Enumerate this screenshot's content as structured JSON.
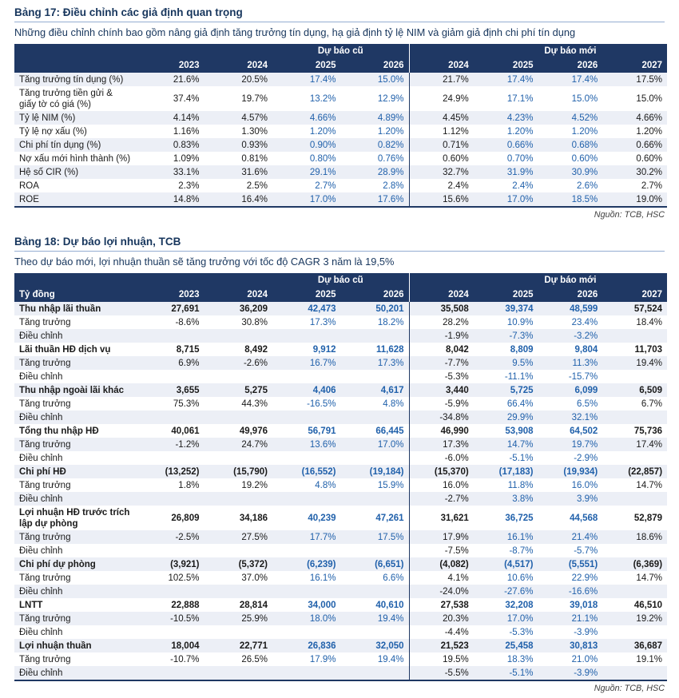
{
  "colors": {
    "header_navy": "#1F3864",
    "forecast_blue": "#2161AB",
    "stripe": "#ECEFF6",
    "title_navy": "#17365d"
  },
  "table17": {
    "title": "Bảng 17: Điều chỉnh các giả định quan trọng",
    "subtitle": "Những điều chỉnh chính bao gồm nâng giả định tăng trưởng tín dụng, hạ giả định tỷ lệ NIM và giảm giả định chi phí tín dụng",
    "group_old": "Dự báo cũ",
    "group_new": "Dự báo mới",
    "unit_label": "",
    "years_old": [
      "2023",
      "2024",
      "2025",
      "2026"
    ],
    "years_new": [
      "2024",
      "2025",
      "2026",
      "2027"
    ],
    "source": "Nguồn: TCB, HSC",
    "rows": [
      {
        "label": "Tăng trưởng tín dụng (%)",
        "old": [
          "21.6%",
          "20.5%",
          "17.4%",
          "15.0%"
        ],
        "new": [
          "21.7%",
          "17.4%",
          "17.4%",
          "17.5%"
        ]
      },
      {
        "label": "Tăng trưởng tiền gửi & giấy tờ có giá (%)",
        "old": [
          "37.4%",
          "19.7%",
          "13.2%",
          "12.9%"
        ],
        "new": [
          "24.9%",
          "17.1%",
          "15.0%",
          "15.0%"
        ]
      },
      {
        "label": "Tỷ lệ NIM (%)",
        "old": [
          "4.14%",
          "4.57%",
          "4.66%",
          "4.89%"
        ],
        "new": [
          "4.45%",
          "4.23%",
          "4.52%",
          "4.66%"
        ]
      },
      {
        "label": "Tỷ lệ nợ xấu (%)",
        "old": [
          "1.16%",
          "1.30%",
          "1.20%",
          "1.20%"
        ],
        "new": [
          "1.12%",
          "1.20%",
          "1.20%",
          "1.20%"
        ]
      },
      {
        "label": "Chi phí tín dụng (%)",
        "old": [
          "0.83%",
          "0.93%",
          "0.90%",
          "0.82%"
        ],
        "new": [
          "0.71%",
          "0.66%",
          "0.68%",
          "0.66%"
        ]
      },
      {
        "label": "Nợ xấu mới hình thành (%)",
        "old": [
          "1.09%",
          "0.81%",
          "0.80%",
          "0.76%"
        ],
        "new": [
          "0.60%",
          "0.70%",
          "0.60%",
          "0.60%"
        ]
      },
      {
        "label": "Hệ số CIR (%)",
        "old": [
          "33.1%",
          "31.6%",
          "29.1%",
          "28.9%"
        ],
        "new": [
          "32.7%",
          "31.9%",
          "30.9%",
          "30.2%"
        ]
      },
      {
        "label": "ROA",
        "old": [
          "2.3%",
          "2.5%",
          "2.7%",
          "2.8%"
        ],
        "new": [
          "2.4%",
          "2.4%",
          "2.6%",
          "2.7%"
        ]
      },
      {
        "label": "ROE",
        "old": [
          "14.8%",
          "16.4%",
          "17.0%",
          "17.6%"
        ],
        "new": [
          "15.6%",
          "17.0%",
          "18.5%",
          "19.0%"
        ]
      }
    ]
  },
  "table18": {
    "title": "Bảng 18: Dự báo lợi nhuận, TCB",
    "subtitle": "Theo dự báo mới, lợi nhuận thuần sẽ tăng trưởng với tốc độ CAGR 3 năm là 19,5%",
    "group_old": "Dự báo cũ",
    "group_new": "Dự báo mới",
    "unit_label": "Tỷ đồng",
    "years_old": [
      "2023",
      "2024",
      "2025",
      "2026"
    ],
    "years_new": [
      "2024",
      "2025",
      "2026",
      "2027"
    ],
    "source": "Nguồn: TCB, HSC",
    "rows": [
      {
        "label": "Thu nhập lãi thuần",
        "bold": true,
        "old": [
          "27,691",
          "36,209",
          "42,473",
          "50,201"
        ],
        "new": [
          "35,508",
          "39,374",
          "48,599",
          "57,524"
        ]
      },
      {
        "label": "Tăng trưởng",
        "old": [
          "-8.6%",
          "30.8%",
          "17.3%",
          "18.2%"
        ],
        "new": [
          "28.2%",
          "10.9%",
          "23.4%",
          "18.4%"
        ]
      },
      {
        "label": "Điều chỉnh",
        "old": [
          "",
          "",
          "",
          ""
        ],
        "new": [
          "-1.9%",
          "-7.3%",
          "-3.2%",
          ""
        ]
      },
      {
        "label": "Lãi thuần HĐ dịch vụ",
        "bold": true,
        "old": [
          "8,715",
          "8,492",
          "9,912",
          "11,628"
        ],
        "new": [
          "8,042",
          "8,809",
          "9,804",
          "11,703"
        ]
      },
      {
        "label": "Tăng trưởng",
        "old": [
          "6.9%",
          "-2.6%",
          "16.7%",
          "17.3%"
        ],
        "new": [
          "-7.7%",
          "9.5%",
          "11.3%",
          "19.4%"
        ]
      },
      {
        "label": "Điều chỉnh",
        "old": [
          "",
          "",
          "",
          ""
        ],
        "new": [
          "-5.3%",
          "-11.1%",
          "-15.7%",
          ""
        ]
      },
      {
        "label": "Thu nhập ngoài lãi khác",
        "bold": true,
        "old": [
          "3,655",
          "5,275",
          "4,406",
          "4,617"
        ],
        "new": [
          "3,440",
          "5,725",
          "6,099",
          "6,509"
        ]
      },
      {
        "label": "Tăng trưởng",
        "old": [
          "75.3%",
          "44.3%",
          "-16.5%",
          "4.8%"
        ],
        "new": [
          "-5.9%",
          "66.4%",
          "6.5%",
          "6.7%"
        ]
      },
      {
        "label": "Điều chỉnh",
        "old": [
          "",
          "",
          "",
          ""
        ],
        "new": [
          "-34.8%",
          "29.9%",
          "32.1%",
          ""
        ]
      },
      {
        "label": "Tổng thu nhập HĐ",
        "bold": true,
        "old": [
          "40,061",
          "49,976",
          "56,791",
          "66,445"
        ],
        "new": [
          "46,990",
          "53,908",
          "64,502",
          "75,736"
        ]
      },
      {
        "label": "Tăng trưởng",
        "old": [
          "-1.2%",
          "24.7%",
          "13.6%",
          "17.0%"
        ],
        "new": [
          "17.3%",
          "14.7%",
          "19.7%",
          "17.4%"
        ]
      },
      {
        "label": "Điều chỉnh",
        "old": [
          "",
          "",
          "",
          ""
        ],
        "new": [
          "-6.0%",
          "-5.1%",
          "-2.9%",
          ""
        ]
      },
      {
        "label": "Chi phí HĐ",
        "bold": true,
        "old": [
          "(13,252)",
          "(15,790)",
          "(16,552)",
          "(19,184)"
        ],
        "new": [
          "(15,370)",
          "(17,183)",
          "(19,934)",
          "(22,857)"
        ]
      },
      {
        "label": "Tăng trưởng",
        "old": [
          "1.8%",
          "19.2%",
          "4.8%",
          "15.9%"
        ],
        "new": [
          "16.0%",
          "11.8%",
          "16.0%",
          "14.7%"
        ]
      },
      {
        "label": "Điều chỉnh",
        "old": [
          "",
          "",
          "",
          ""
        ],
        "new": [
          "-2.7%",
          "3.8%",
          "3.9%",
          ""
        ]
      },
      {
        "label": "Lợi nhuận HĐ trước trích lập dự phòng",
        "bold": true,
        "old": [
          "26,809",
          "34,186",
          "40,239",
          "47,261"
        ],
        "new": [
          "31,621",
          "36,725",
          "44,568",
          "52,879"
        ]
      },
      {
        "label": "Tăng trưởng",
        "old": [
          "-2.5%",
          "27.5%",
          "17.7%",
          "17.5%"
        ],
        "new": [
          "17.9%",
          "16.1%",
          "21.4%",
          "18.6%"
        ]
      },
      {
        "label": "Điều chỉnh",
        "old": [
          "",
          "",
          "",
          ""
        ],
        "new": [
          "-7.5%",
          "-8.7%",
          "-5.7%",
          ""
        ]
      },
      {
        "label": "Chi phí dự phòng",
        "bold": true,
        "old": [
          "(3,921)",
          "(5,372)",
          "(6,239)",
          "(6,651)"
        ],
        "new": [
          "(4,082)",
          "(4,517)",
          "(5,551)",
          "(6,369)"
        ]
      },
      {
        "label": "Tăng trưởng",
        "old": [
          "102.5%",
          "37.0%",
          "16.1%",
          "6.6%"
        ],
        "new": [
          "4.1%",
          "10.6%",
          "22.9%",
          "14.7%"
        ]
      },
      {
        "label": "Điều chỉnh",
        "old": [
          "",
          "",
          "",
          ""
        ],
        "new": [
          "-24.0%",
          "-27.6%",
          "-16.6%",
          ""
        ]
      },
      {
        "label": "LNTT",
        "bold": true,
        "old": [
          "22,888",
          "28,814",
          "34,000",
          "40,610"
        ],
        "new": [
          "27,538",
          "32,208",
          "39,018",
          "46,510"
        ]
      },
      {
        "label": "Tăng trưởng",
        "old": [
          "-10.5%",
          "25.9%",
          "18.0%",
          "19.4%"
        ],
        "new": [
          "20.3%",
          "17.0%",
          "21.1%",
          "19.2%"
        ]
      },
      {
        "label": "Điều chỉnh",
        "old": [
          "",
          "",
          "",
          ""
        ],
        "new": [
          "-4.4%",
          "-5.3%",
          "-3.9%",
          ""
        ]
      },
      {
        "label": "Lợi nhuận thuần",
        "bold": true,
        "old": [
          "18,004",
          "22,771",
          "26,836",
          "32,050"
        ],
        "new": [
          "21,523",
          "25,458",
          "30,813",
          "36,687"
        ]
      },
      {
        "label": "Tăng trưởng",
        "old": [
          "-10.7%",
          "26.5%",
          "17.9%",
          "19.4%"
        ],
        "new": [
          "19.5%",
          "18.3%",
          "21.0%",
          "19.1%"
        ]
      },
      {
        "label": "Điều chỉnh",
        "old": [
          "",
          "",
          "",
          ""
        ],
        "new": [
          "-5.5%",
          "-5.1%",
          "-3.9%",
          ""
        ]
      }
    ]
  }
}
